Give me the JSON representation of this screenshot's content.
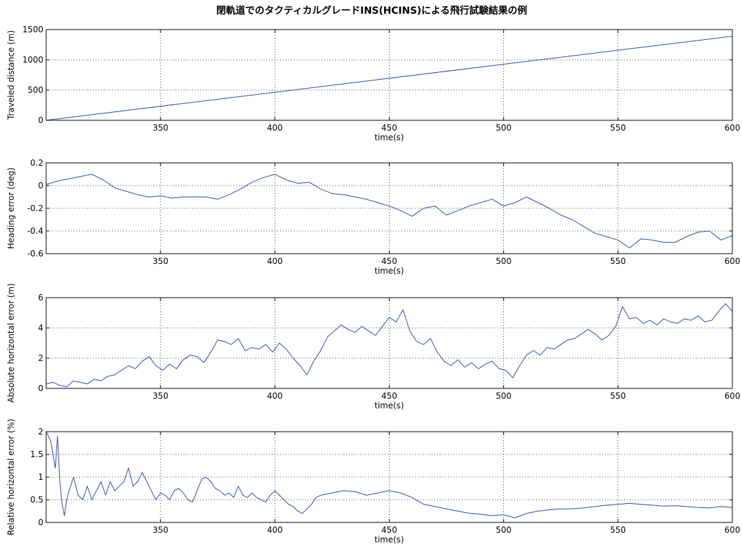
{
  "figure": {
    "title": "閉軌道でのタクティカルグレードINS(HCINS)による飛行試験結果の例"
  },
  "colors": {
    "line": "#2f4aa0",
    "axis": "#000000",
    "grid": "#000000",
    "background": "#ffffff"
  },
  "chart_data": [
    {
      "type": "line",
      "xlabel": "time(s)",
      "ylabel": "Traveled distance (m)",
      "xlim": [
        300,
        600
      ],
      "ylim": [
        0,
        1500
      ],
      "xticks": [
        350,
        400,
        450,
        500,
        550,
        600
      ],
      "yticks": [
        0,
        500,
        1000,
        1500
      ],
      "grid": true,
      "series": [
        {
          "x": [
            300,
            600
          ],
          "y": [
            0,
            1390
          ]
        }
      ]
    },
    {
      "type": "line",
      "xlabel": "time(s)",
      "ylabel": "Heading error (deg)",
      "xlim": [
        300,
        600
      ],
      "ylim": [
        -0.6,
        0.2
      ],
      "xticks": [
        350,
        400,
        450,
        500,
        550,
        600
      ],
      "yticks": [
        -0.6,
        -0.4,
        -0.2,
        0,
        0.2
      ],
      "grid": true,
      "series": [
        {
          "x": [
            300,
            305,
            310,
            315,
            320,
            325,
            330,
            335,
            340,
            345,
            350,
            355,
            360,
            365,
            370,
            375,
            380,
            385,
            390,
            395,
            400,
            402,
            405,
            410,
            415,
            420,
            425,
            430,
            435,
            440,
            445,
            450,
            455,
            460,
            465,
            470,
            475,
            480,
            485,
            490,
            495,
            500,
            505,
            510,
            515,
            520,
            525,
            530,
            535,
            540,
            545,
            550,
            555,
            560,
            565,
            570,
            575,
            580,
            585,
            590,
            595,
            600
          ],
          "y": [
            0.01,
            0.04,
            0.06,
            0.08,
            0.1,
            0.05,
            -0.02,
            -0.05,
            -0.08,
            -0.1,
            -0.09,
            -0.11,
            -0.1,
            -0.1,
            -0.1,
            -0.12,
            -0.08,
            -0.03,
            0.03,
            0.07,
            0.1,
            0.08,
            0.05,
            0.02,
            0.03,
            -0.03,
            -0.07,
            -0.08,
            -0.1,
            -0.12,
            -0.15,
            -0.18,
            -0.22,
            -0.27,
            -0.2,
            -0.18,
            -0.26,
            -0.22,
            -0.18,
            -0.15,
            -0.12,
            -0.18,
            -0.15,
            -0.1,
            -0.15,
            -0.2,
            -0.26,
            -0.3,
            -0.36,
            -0.42,
            -0.45,
            -0.48,
            -0.55,
            -0.47,
            -0.48,
            -0.5,
            -0.5,
            -0.45,
            -0.41,
            -0.4,
            -0.48,
            -0.44
          ]
        }
      ]
    },
    {
      "type": "line",
      "xlabel": "time(s)",
      "ylabel": "Absolute horizontal error (m)",
      "xlim": [
        300,
        600
      ],
      "ylim": [
        0,
        6
      ],
      "xticks": [
        350,
        400,
        450,
        500,
        550,
        600
      ],
      "yticks": [
        0,
        2,
        4,
        6
      ],
      "grid": true,
      "series": [
        {
          "x": [
            300,
            303,
            306,
            309,
            312,
            315,
            318,
            321,
            324,
            327,
            330,
            333,
            336,
            339,
            342,
            345,
            348,
            351,
            354,
            357,
            360,
            363,
            366,
            369,
            372,
            375,
            378,
            381,
            384,
            387,
            390,
            393,
            396,
            399,
            402,
            405,
            408,
            411,
            414,
            417,
            420,
            423,
            426,
            429,
            432,
            435,
            438,
            441,
            444,
            447,
            450,
            453,
            456,
            459,
            462,
            465,
            468,
            471,
            474,
            477,
            480,
            483,
            486,
            489,
            492,
            495,
            498,
            501,
            504,
            507,
            510,
            513,
            516,
            519,
            522,
            525,
            528,
            531,
            534,
            537,
            540,
            543,
            546,
            549,
            552,
            555,
            558,
            561,
            564,
            567,
            570,
            573,
            576,
            579,
            582,
            585,
            588,
            591,
            594,
            597,
            600
          ],
          "y": [
            0.3,
            0.4,
            0.2,
            0.1,
            0.5,
            0.4,
            0.3,
            0.6,
            0.5,
            0.8,
            0.9,
            1.2,
            1.5,
            1.3,
            1.8,
            2.1,
            1.5,
            1.2,
            1.6,
            1.3,
            1.9,
            2.2,
            2.1,
            1.7,
            2.4,
            3.2,
            3.1,
            2.9,
            3.3,
            2.5,
            2.7,
            2.6,
            2.9,
            2.4,
            3.0,
            2.6,
            2.0,
            1.5,
            0.9,
            1.8,
            2.5,
            3.4,
            3.8,
            4.2,
            3.9,
            3.7,
            4.1,
            3.8,
            3.5,
            4.1,
            4.7,
            4.4,
            5.2,
            3.8,
            3.1,
            2.9,
            3.3,
            2.4,
            1.8,
            1.5,
            1.9,
            1.4,
            1.7,
            1.3,
            1.6,
            1.8,
            1.3,
            1.2,
            0.7,
            1.5,
            2.2,
            2.5,
            2.2,
            2.7,
            2.6,
            2.9,
            3.2,
            3.3,
            3.6,
            3.9,
            3.6,
            3.2,
            3.5,
            4.1,
            5.4,
            4.6,
            4.7,
            4.3,
            4.5,
            4.2,
            4.6,
            4.4,
            4.3,
            4.6,
            4.5,
            4.8,
            4.4,
            4.5,
            5.1,
            5.6,
            5.1
          ]
        }
      ]
    },
    {
      "type": "line",
      "xlabel": "time(s)",
      "ylabel": "Relative horizontal error (%)",
      "xlim": [
        300,
        600
      ],
      "ylim": [
        0,
        2
      ],
      "xticks": [
        350,
        400,
        450,
        500,
        550,
        600
      ],
      "yticks": [
        0,
        0.5,
        1,
        1.5,
        2
      ],
      "grid": true,
      "series": [
        {
          "x": [
            300,
            302,
            304,
            305,
            306,
            307,
            308,
            309,
            310,
            312,
            314,
            316,
            318,
            320,
            322,
            324,
            326,
            328,
            330,
            332,
            334,
            336,
            338,
            340,
            342,
            344,
            346,
            348,
            350,
            352,
            354,
            356,
            358,
            360,
            362,
            364,
            366,
            368,
            370,
            372,
            374,
            376,
            378,
            380,
            382,
            384,
            386,
            388,
            390,
            392,
            394,
            396,
            398,
            400,
            402,
            404,
            406,
            408,
            410,
            412,
            414,
            416,
            418,
            420,
            425,
            430,
            435,
            440,
            445,
            450,
            455,
            460,
            465,
            470,
            475,
            480,
            485,
            490,
            495,
            500,
            505,
            510,
            515,
            520,
            525,
            530,
            535,
            540,
            545,
            550,
            555,
            560,
            565,
            570,
            575,
            580,
            585,
            590,
            595,
            600
          ],
          "y": [
            2.0,
            1.8,
            1.2,
            1.9,
            0.9,
            0.4,
            0.15,
            0.5,
            0.7,
            1.0,
            0.6,
            0.5,
            0.8,
            0.5,
            0.7,
            0.9,
            0.6,
            0.9,
            0.7,
            0.8,
            0.9,
            1.2,
            0.8,
            0.9,
            1.1,
            0.9,
            0.7,
            0.5,
            0.65,
            0.6,
            0.5,
            0.7,
            0.75,
            0.65,
            0.5,
            0.45,
            0.7,
            0.95,
            1.0,
            0.9,
            0.75,
            0.7,
            0.6,
            0.65,
            0.55,
            0.8,
            0.6,
            0.55,
            0.65,
            0.55,
            0.5,
            0.45,
            0.6,
            0.7,
            0.6,
            0.5,
            0.4,
            0.35,
            0.25,
            0.2,
            0.3,
            0.4,
            0.55,
            0.6,
            0.65,
            0.7,
            0.68,
            0.6,
            0.65,
            0.7,
            0.65,
            0.55,
            0.4,
            0.35,
            0.3,
            0.25,
            0.2,
            0.18,
            0.15,
            0.17,
            0.1,
            0.2,
            0.25,
            0.28,
            0.3,
            0.3,
            0.32,
            0.35,
            0.38,
            0.4,
            0.42,
            0.4,
            0.38,
            0.36,
            0.37,
            0.35,
            0.33,
            0.32,
            0.35,
            0.33
          ]
        }
      ]
    }
  ]
}
